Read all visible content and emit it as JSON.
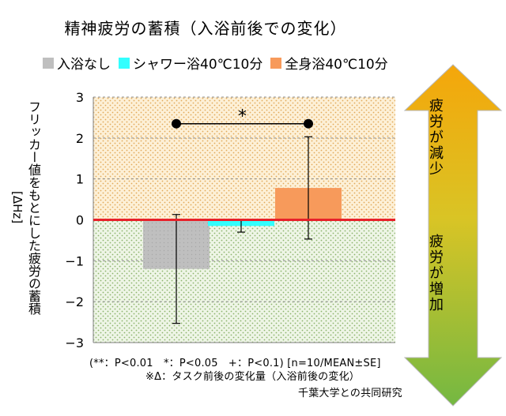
{
  "title": "精神疲労の蓄積（入浴前後での変化）",
  "legend": [
    {
      "label": "入浴なし",
      "color": "#bfbfbf"
    },
    {
      "label": "シャワー浴40℃10分",
      "color": "#33ffff"
    },
    {
      "label": "全身浴40℃10分",
      "color": "#f79a5b"
    }
  ],
  "y_axis": {
    "label_line1": "フリッカー値をもとにした疲労の蓄積",
    "label_line2": "[ΔHz]"
  },
  "significance_mark": "*",
  "footnotes": {
    "line1": "(**：P<0.01　*：P<0.05　+：P<0.1) [n=10/MEAN±SE]",
    "line2": "※Δ：タスク前後の変化量（入浴前後の変化）",
    "line3": "千葉大学との共同研究"
  },
  "arrow": {
    "top_label": "疲労が減少",
    "bottom_label": "疲労が増加",
    "top_color": "#f5a60a",
    "bottom_color": "#74b842"
  },
  "chart_data": {
    "type": "bar",
    "categories": [
      "入浴なし",
      "シャワー浴40℃10分",
      "全身浴40℃10分"
    ],
    "values": [
      -1.2,
      -0.15,
      0.78
    ],
    "errors": [
      1.33,
      0.15,
      1.25
    ],
    "colors": [
      "#bfbfbf",
      "#33ffff",
      "#f79a5b"
    ],
    "ylim": [
      -3,
      3
    ],
    "yticks": [
      -3,
      -2,
      -1,
      0,
      1,
      2,
      3
    ],
    "ytick_labels": [
      "−3",
      "−2",
      "−1",
      "0",
      "1",
      "2",
      "3"
    ],
    "zero_line_color": "#e8212a",
    "positive_region_color": "#fdf0d7",
    "negative_region_color": "#edf4e4",
    "grid": true,
    "significance": {
      "between": [
        0,
        2
      ],
      "y": 2.35,
      "label": "*"
    }
  }
}
